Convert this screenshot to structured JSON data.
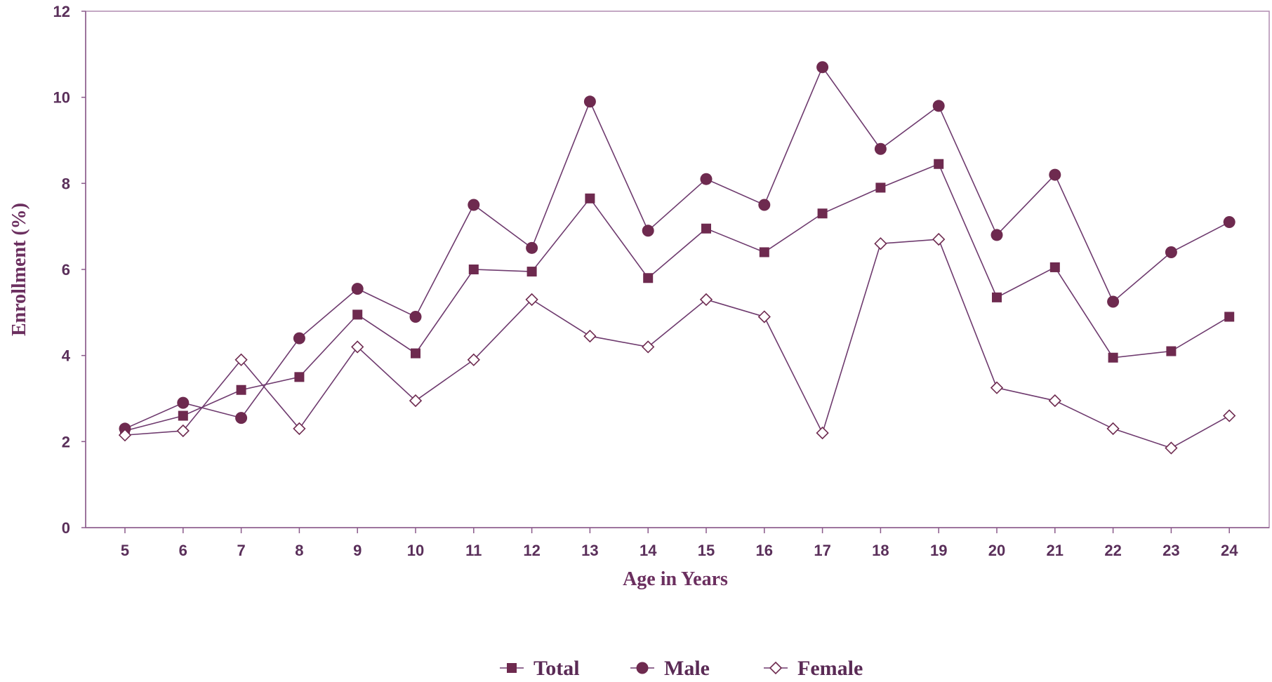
{
  "chart_data": {
    "type": "line",
    "title": "",
    "xlabel": "Age in Years",
    "ylabel": "Enrollment (%)",
    "categories": [
      "5",
      "6",
      "7",
      "8",
      "9",
      "10",
      "11",
      "12",
      "13",
      "14",
      "15",
      "16",
      "17",
      "18",
      "19",
      "20",
      "21",
      "22",
      "23",
      "24"
    ],
    "ylim": [
      0,
      12
    ],
    "yticks": [
      "0",
      "2",
      "4",
      "6",
      "8",
      "10",
      "12"
    ],
    "grid": false,
    "legend_position": "bottom-center",
    "series": [
      {
        "name": "Total",
        "marker": "square-filled",
        "color": "#6e2a4f",
        "values": [
          2.25,
          2.6,
          3.2,
          3.5,
          4.95,
          4.05,
          6.0,
          5.95,
          7.65,
          5.8,
          6.95,
          6.4,
          7.3,
          7.9,
          8.45,
          5.35,
          6.05,
          3.95,
          4.1,
          4.9
        ]
      },
      {
        "name": "Male",
        "marker": "circle-filled",
        "color": "#6e2a4f",
        "values": [
          2.3,
          2.9,
          2.55,
          4.4,
          5.55,
          4.9,
          7.5,
          6.5,
          9.9,
          6.9,
          8.1,
          7.5,
          10.7,
          8.8,
          9.8,
          6.8,
          8.2,
          5.25,
          6.4,
          7.1
        ]
      },
      {
        "name": "Female",
        "marker": "diamond-open",
        "color": "#6e2a4f",
        "values": [
          2.15,
          2.25,
          3.9,
          2.3,
          4.2,
          2.95,
          3.9,
          5.3,
          4.45,
          4.2,
          5.3,
          4.9,
          2.2,
          6.6,
          6.7,
          3.25,
          2.95,
          2.3,
          1.85,
          2.6
        ]
      }
    ]
  },
  "colors": {
    "axis": "#8a5a8a",
    "line": "#6e3a6e",
    "marker": "#6e2a4f"
  }
}
